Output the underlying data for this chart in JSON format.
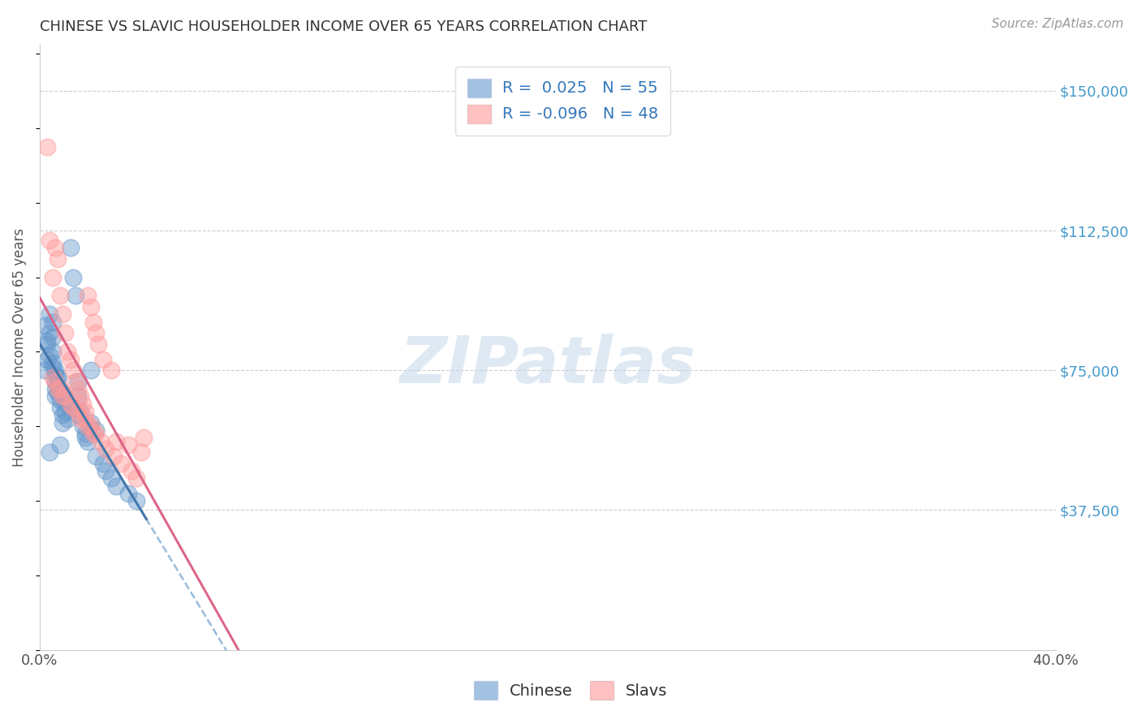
{
  "title": "CHINESE VS SLAVIC HOUSEHOLDER INCOME OVER 65 YEARS CORRELATION CHART",
  "source": "Source: ZipAtlas.com",
  "ylabel": "Householder Income Over 65 years",
  "xlim": [
    0.0,
    0.4
  ],
  "ylim": [
    0,
    162500
  ],
  "xticks": [
    0.0,
    0.05,
    0.1,
    0.15,
    0.2,
    0.25,
    0.3,
    0.35,
    0.4
  ],
  "yticks_right": [
    37500,
    75000,
    112500,
    150000
  ],
  "ytick_labels_right": [
    "$37,500",
    "$75,000",
    "$112,500",
    "$150,000"
  ],
  "chinese_color": "#6699cc",
  "slavs_color": "#ff9999",
  "chinese_R": "0.025",
  "chinese_N": "55",
  "slavs_R": "-0.096",
  "slavs_N": "48",
  "watermark": "ZIPatlas",
  "chinese_x": [
    0.002,
    0.003,
    0.003,
    0.004,
    0.004,
    0.005,
    0.005,
    0.005,
    0.005,
    0.006,
    0.006,
    0.006,
    0.006,
    0.007,
    0.007,
    0.007,
    0.008,
    0.008,
    0.009,
    0.009,
    0.01,
    0.01,
    0.011,
    0.012,
    0.013,
    0.014,
    0.015,
    0.015,
    0.016,
    0.017,
    0.018,
    0.019,
    0.02,
    0.022,
    0.025,
    0.026,
    0.028,
    0.03,
    0.035,
    0.038,
    0.002,
    0.003,
    0.004,
    0.005,
    0.006,
    0.007,
    0.009,
    0.01,
    0.012,
    0.015,
    0.02,
    0.022,
    0.018,
    0.008,
    0.004
  ],
  "chinese_y": [
    75000,
    78000,
    82000,
    85000,
    90000,
    88000,
    84000,
    80000,
    76000,
    74000,
    72000,
    70000,
    68000,
    73000,
    71000,
    69000,
    67000,
    65000,
    63000,
    61000,
    66000,
    64000,
    62000,
    108000,
    100000,
    95000,
    72000,
    68000,
    64000,
    60000,
    58000,
    56000,
    75000,
    52000,
    50000,
    48000,
    46000,
    44000,
    42000,
    40000,
    87000,
    83000,
    79000,
    77000,
    75000,
    73000,
    69000,
    67000,
    65000,
    63000,
    61000,
    59000,
    57000,
    55000,
    53000
  ],
  "slavs_x": [
    0.003,
    0.004,
    0.005,
    0.006,
    0.007,
    0.008,
    0.009,
    0.01,
    0.011,
    0.012,
    0.013,
    0.014,
    0.015,
    0.016,
    0.017,
    0.018,
    0.019,
    0.02,
    0.021,
    0.022,
    0.023,
    0.025,
    0.028,
    0.03,
    0.035,
    0.04,
    0.005,
    0.007,
    0.009,
    0.012,
    0.015,
    0.018,
    0.02,
    0.022,
    0.006,
    0.008,
    0.01,
    0.013,
    0.016,
    0.019,
    0.021,
    0.024,
    0.026,
    0.029,
    0.032,
    0.036,
    0.038,
    0.041
  ],
  "slavs_y": [
    135000,
    110000,
    100000,
    108000,
    105000,
    95000,
    90000,
    85000,
    80000,
    78000,
    75000,
    72000,
    70000,
    68000,
    66000,
    64000,
    95000,
    92000,
    88000,
    85000,
    82000,
    78000,
    75000,
    56000,
    55000,
    53000,
    73000,
    70000,
    68000,
    66000,
    64000,
    62000,
    60000,
    58000,
    72000,
    70000,
    68000,
    65000,
    62000,
    60000,
    58000,
    56000,
    54000,
    52000,
    50000,
    48000,
    46000,
    57000
  ],
  "chinese_trendline_color": "#4477aa",
  "chinese_dashed_color": "#99bbdd",
  "slavs_trendline_color": "#dd6688"
}
